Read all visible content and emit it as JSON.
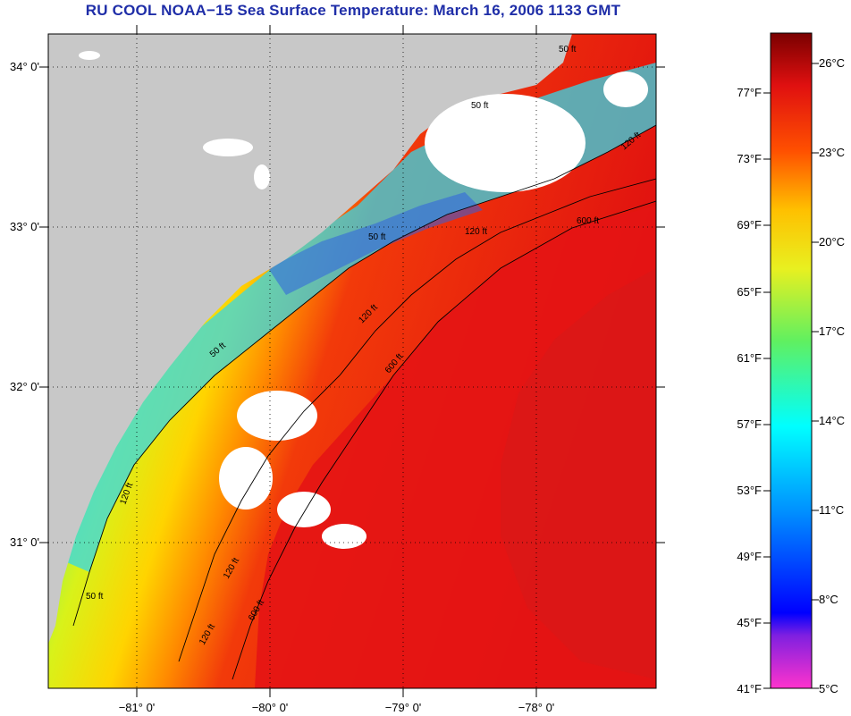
{
  "title": "RU COOL  NOAA−15  Sea Surface Temperature:  March 16, 2006 1133 GMT",
  "colors": {
    "land": "#c8c8c8",
    "title": "#1f2ea8",
    "cloud": "#ffffff"
  },
  "map": {
    "lat_labels": [
      "34° 0'",
      "33° 0'",
      "32° 0'",
      "31° 0'"
    ],
    "lon_labels": [
      "−81° 0'",
      "−80° 0'",
      "−79° 0'",
      "−78° 0'"
    ],
    "isobath_labels": [
      "50 ft",
      "50 ft",
      "50 ft",
      "50 ft",
      "120 ft",
      "120 ft",
      "120 ft",
      "120 ft",
      "120 ft",
      "600 ft",
      "600 ft",
      "600 ft",
      "120 ft",
      "50 ft"
    ]
  },
  "colorbar": {
    "fahrenheit": [
      "77°F",
      "73°F",
      "69°F",
      "65°F",
      "61°F",
      "57°F",
      "53°F",
      "49°F",
      "45°F",
      "41°F"
    ],
    "celsius": [
      "26°C",
      "23°C",
      "20°C",
      "17°C",
      "14°C",
      "11°C",
      "8°C",
      "5°C"
    ]
  }
}
